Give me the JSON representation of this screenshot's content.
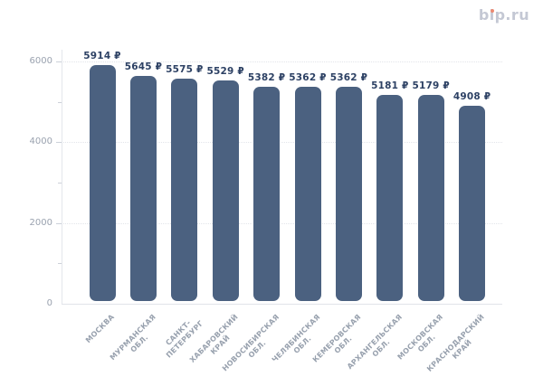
{
  "logo": {
    "text": "bip.ru",
    "part_b": "b",
    "part_i": "i",
    "part_rest": "p.ru",
    "text_color": "#c4c8d4",
    "dot_color": "#ec8a72"
  },
  "chart_data": {
    "type": "bar",
    "title": "",
    "xlabel": "",
    "ylabel": "",
    "categories": [
      "МОСКВА",
      "МУРМАНСКАЯ\nОБЛ.",
      "САНКТ-\nПЕТЕРБУРГ",
      "ХАБАРОВСКИЙ\nКРАЙ",
      "НОВОСИБИРСКАЯ\nОБЛ.",
      "ЧЕЛЯБИНСКАЯ\nОБЛ.",
      "КЕМЕРОВСКАЯ\nОБЛ.",
      "АРХАНГЕЛЬСКАЯ\nОБЛ.",
      "МОСКОВСКАЯ\nОБЛ.",
      "КРАСНОДАРСКИЙ\nКРАЙ"
    ],
    "values": [
      5914,
      5645,
      5575,
      5529,
      5382,
      5362,
      5362,
      5181,
      5179,
      4908
    ],
    "value_labels": [
      "5914 ₽",
      "5645 ₽",
      "5575 ₽",
      "5529 ₽",
      "5382 ₽",
      "5362 ₽",
      "5362 ₽",
      "5181 ₽",
      "5179 ₽",
      "4908 ₽"
    ],
    "currency": "₽",
    "ylim": [
      0,
      6000
    ],
    "y_ticks": [
      0,
      2000,
      4000,
      6000
    ],
    "y_minor_ticks": [
      1000,
      3000,
      5000
    ],
    "grid": "horizontal dotted at major ticks",
    "legend": "none",
    "bar_color": "#4b6180",
    "value_label_color": "#2d4164",
    "axis_label_color": "#9aa2af"
  }
}
